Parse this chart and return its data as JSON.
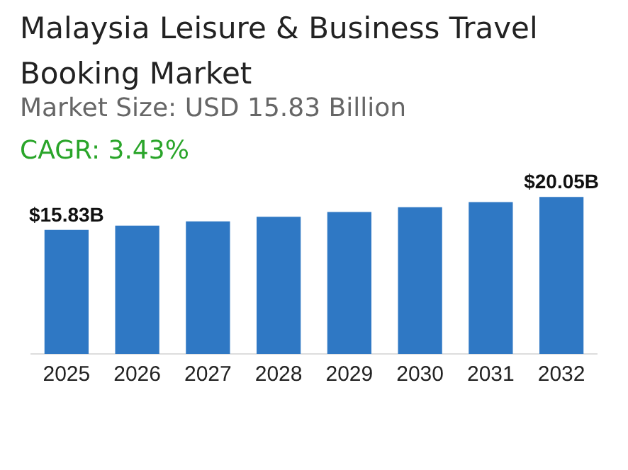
{
  "chart_data": {
    "type": "bar",
    "title": "Malaysia Leisure & Business Travel Booking Market",
    "subtitle": "Market Size: USD 15.83 Billion",
    "annotations": [
      "CAGR: 3.43%"
    ],
    "categories": [
      "2025",
      "2026",
      "2027",
      "2028",
      "2029",
      "2030",
      "2031",
      "2032"
    ],
    "values": [
      15.83,
      16.37,
      16.93,
      17.51,
      18.11,
      18.73,
      19.38,
      20.05
    ],
    "value_labels": [
      "$15.83B",
      null,
      null,
      null,
      null,
      null,
      null,
      "$20.05B"
    ],
    "color": "#2f78c4",
    "grid": false,
    "legend": false
  }
}
